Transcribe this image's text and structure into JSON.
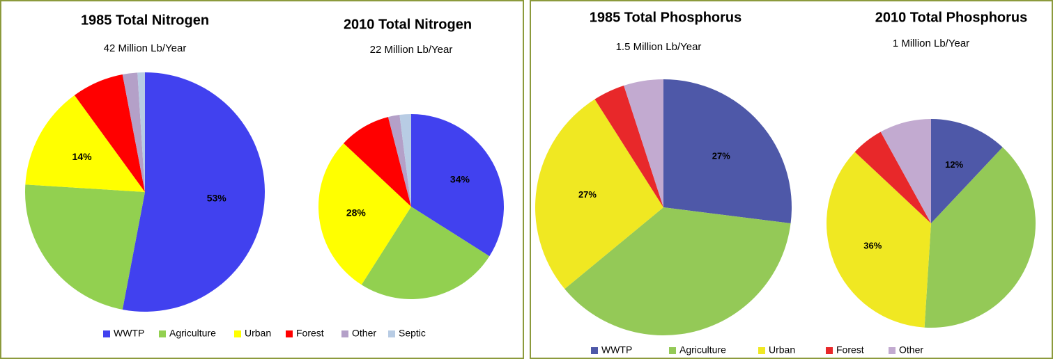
{
  "chart_data": [
    {
      "type": "pie",
      "title": "1985 Total Nitrogen",
      "subtitle": "42 Million Lb/Year",
      "categories": [
        "WWTP",
        "Agriculture",
        "Urban",
        "Forest",
        "Other",
        "Septic"
      ],
      "colors": [
        "#4141ef",
        "#92d050",
        "#ffff00",
        "#ff0000",
        "#b4a0c8",
        "#b8cce4"
      ],
      "values": [
        53,
        23,
        14,
        7,
        2,
        1
      ],
      "value_labels": [
        "53%",
        null,
        "14%",
        null,
        null,
        null
      ]
    },
    {
      "type": "pie",
      "title": "2010 Total Nitrogen",
      "subtitle": "22 Million Lb/Year",
      "values": [
        34,
        25,
        28,
        9,
        2,
        2
      ],
      "value_labels": [
        "34%",
        null,
        "28%",
        null,
        null,
        null
      ]
    },
    {
      "type": "pie",
      "title": "1985 Total Phosphorus",
      "subtitle": "1.5 Million Lb/Year",
      "categories": [
        "WWTP",
        "Agriculture",
        "Urban",
        "Forest",
        "Other"
      ],
      "colors": [
        "#4e58a8",
        "#94c957",
        "#f0e822",
        "#e8282a",
        "#c2aad0"
      ],
      "values": [
        27,
        37,
        27,
        4,
        5
      ],
      "value_labels": [
        "27%",
        null,
        "27%",
        null,
        null
      ]
    },
    {
      "type": "pie",
      "title": "2010 Total Phosphorus",
      "subtitle": "1 Million Lb/Year",
      "values": [
        12,
        39,
        36,
        5,
        8
      ],
      "value_labels": [
        "12%",
        null,
        "36%",
        null,
        null
      ]
    }
  ]
}
